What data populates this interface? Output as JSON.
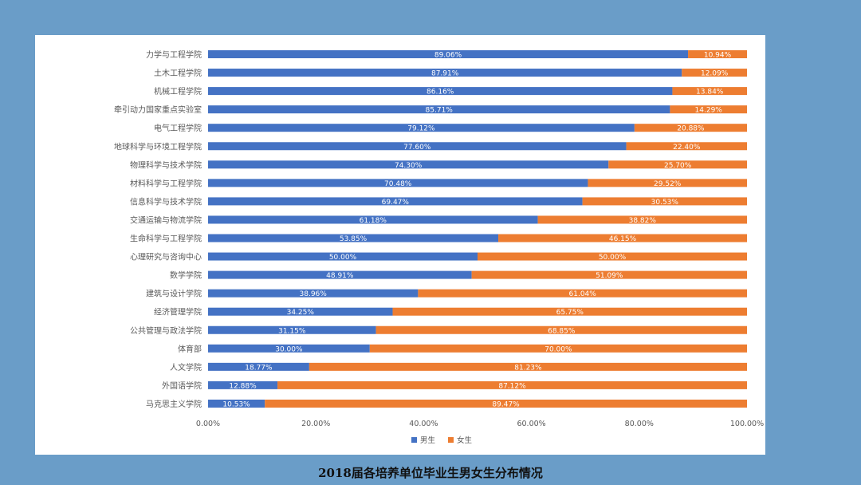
{
  "caption": "2018届各培养单位毕业生男女生分布情况",
  "colors": {
    "male": "#4472c4",
    "female": "#ed7d31",
    "axis_text": "#595959",
    "grid": "#d9d9d9",
    "label_text": "#ffffff"
  },
  "chart_data": {
    "type": "bar",
    "orientation": "horizontal",
    "stacked": "percent",
    "title": "",
    "xlabel": "",
    "ylabel": "",
    "xlim": [
      0,
      100
    ],
    "x_ticks": [
      "0.00%",
      "20.00%",
      "40.00%",
      "60.00%",
      "80.00%",
      "100.00%"
    ],
    "legend_position": "bottom",
    "categories": [
      "力学与工程学院",
      "土木工程学院",
      "机械工程学院",
      "牵引动力国家重点实验室",
      "电气工程学院",
      "地球科学与环境工程学院",
      "物理科学与技术学院",
      "材料科学与工程学院",
      "信息科学与技术学院",
      "交通运输与物流学院",
      "生命科学与工程学院",
      "心理研究与咨询中心",
      "数学学院",
      "建筑与设计学院",
      "经济管理学院",
      "公共管理与政法学院",
      "体育部",
      "人文学院",
      "外国语学院",
      "马克思主义学院"
    ],
    "series": [
      {
        "name": "男生",
        "values": [
          89.06,
          87.91,
          86.16,
          85.71,
          79.12,
          77.6,
          74.3,
          70.48,
          69.47,
          61.18,
          53.85,
          50.0,
          48.91,
          38.96,
          34.25,
          31.15,
          30.0,
          18.77,
          12.88,
          10.53
        ],
        "labels": [
          "89.06%",
          "87.91%",
          "86.16%",
          "85.71%",
          "79.12%",
          "77.60%",
          "74.30%",
          "70.48%",
          "69.47%",
          "61.18%",
          "53.85%",
          "50.00%",
          "48.91%",
          "38.96%",
          "34.25%",
          "31.15%",
          "30.00%",
          "18.77%",
          "12.88%",
          "10.53%"
        ]
      },
      {
        "name": "女生",
        "values": [
          10.94,
          12.09,
          13.84,
          14.29,
          20.88,
          22.4,
          25.7,
          29.52,
          30.53,
          38.82,
          46.15,
          50.0,
          51.09,
          61.04,
          65.75,
          68.85,
          70.0,
          81.23,
          87.12,
          89.47
        ],
        "labels": [
          "10.94%",
          "12.09%",
          "13.84%",
          "14.29%",
          "20.88%",
          "22.40%",
          "25.70%",
          "29.52%",
          "30.53%",
          "38.82%",
          "46.15%",
          "50.00%",
          "51.09%",
          "61.04%",
          "65.75%",
          "68.85%",
          "70.00%",
          "81.23%",
          "87.12%",
          "89.47%"
        ]
      }
    ]
  }
}
